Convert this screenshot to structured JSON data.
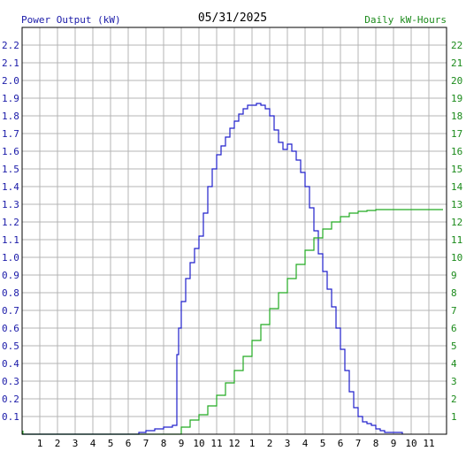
{
  "header": {
    "left_title": "Power Output (kW)",
    "center_title": "05/31/2025",
    "right_title": "Daily kW-Hours"
  },
  "colors": {
    "left_axis": "#1a1aa8",
    "right_axis": "#1a8a1a",
    "power_series": "#2020cc",
    "energy_series": "#22aa22",
    "grid": "#b4b4b4",
    "frame": "#000000"
  },
  "chart_data": {
    "type": "line",
    "x_ticks": [
      "1",
      "2",
      "3",
      "4",
      "5",
      "6",
      "7",
      "8",
      "9",
      "10",
      "11",
      "12",
      "1",
      "2",
      "3",
      "4",
      "5",
      "6",
      "7",
      "8",
      "9",
      "10",
      "11"
    ],
    "x_range_hours": [
      0,
      24
    ],
    "left_axis": {
      "label": "Power Output (kW)",
      "range": [
        0,
        2.3
      ],
      "ticks": [
        "0.1",
        "0.2",
        "0.3",
        "0.4",
        "0.5",
        "0.6",
        "0.7",
        "0.8",
        "0.9",
        "1.0",
        "1.1",
        "1.2",
        "1.3",
        "1.4",
        "1.5",
        "1.6",
        "1.7",
        "1.8",
        "1.9",
        "2.0",
        "2.1",
        "2.2"
      ]
    },
    "right_axis": {
      "label": "Daily kW-Hours",
      "range": [
        0,
        23
      ],
      "ticks": [
        "1",
        "2",
        "3",
        "4",
        "5",
        "6",
        "7",
        "8",
        "9",
        "10",
        "11",
        "12",
        "13",
        "14",
        "15",
        "16",
        "17",
        "18",
        "19",
        "20",
        "21",
        "22"
      ]
    },
    "grid": true,
    "series": [
      {
        "name": "Power Output (kW)",
        "axis": "left",
        "points": [
          [
            0,
            0
          ],
          [
            6.5,
            0
          ],
          [
            6.6,
            0.01
          ],
          [
            7,
            0.02
          ],
          [
            7.5,
            0.03
          ],
          [
            8,
            0.04
          ],
          [
            8.5,
            0.05
          ],
          [
            8.75,
            0.45
          ],
          [
            8.85,
            0.6
          ],
          [
            9,
            0.75
          ],
          [
            9.25,
            0.88
          ],
          [
            9.5,
            0.97
          ],
          [
            9.75,
            1.05
          ],
          [
            10,
            1.12
          ],
          [
            10.25,
            1.25
          ],
          [
            10.5,
            1.4
          ],
          [
            10.75,
            1.5
          ],
          [
            11,
            1.58
          ],
          [
            11.25,
            1.63
          ],
          [
            11.5,
            1.68
          ],
          [
            11.75,
            1.73
          ],
          [
            12,
            1.77
          ],
          [
            12.25,
            1.81
          ],
          [
            12.5,
            1.84
          ],
          [
            12.75,
            1.86
          ],
          [
            13,
            1.86
          ],
          [
            13.25,
            1.87
          ],
          [
            13.5,
            1.86
          ],
          [
            13.75,
            1.84
          ],
          [
            14,
            1.8
          ],
          [
            14.25,
            1.72
          ],
          [
            14.5,
            1.65
          ],
          [
            14.75,
            1.61
          ],
          [
            15,
            1.64
          ],
          [
            15.25,
            1.6
          ],
          [
            15.5,
            1.55
          ],
          [
            15.75,
            1.48
          ],
          [
            16,
            1.4
          ],
          [
            16.25,
            1.28
          ],
          [
            16.5,
            1.15
          ],
          [
            16.75,
            1.02
          ],
          [
            17,
            0.92
          ],
          [
            17.25,
            0.82
          ],
          [
            17.5,
            0.72
          ],
          [
            17.75,
            0.6
          ],
          [
            18,
            0.48
          ],
          [
            18.25,
            0.36
          ],
          [
            18.5,
            0.24
          ],
          [
            18.75,
            0.15
          ],
          [
            19,
            0.1
          ],
          [
            19.25,
            0.07
          ],
          [
            19.5,
            0.06
          ],
          [
            19.75,
            0.05
          ],
          [
            20,
            0.03
          ],
          [
            20.25,
            0.02
          ],
          [
            20.5,
            0.01
          ],
          [
            21,
            0.01
          ],
          [
            21.5,
            0
          ]
        ]
      },
      {
        "name": "Daily kW-Hours",
        "axis": "right",
        "points": [
          [
            0,
            0
          ],
          [
            8.5,
            0
          ],
          [
            9,
            0.4
          ],
          [
            9.5,
            0.8
          ],
          [
            10,
            1.1
          ],
          [
            10.5,
            1.6
          ],
          [
            11,
            2.2
          ],
          [
            11.5,
            2.9
          ],
          [
            12,
            3.6
          ],
          [
            12.5,
            4.4
          ],
          [
            13,
            5.3
          ],
          [
            13.5,
            6.2
          ],
          [
            14,
            7.1
          ],
          [
            14.5,
            8.0
          ],
          [
            15,
            8.8
          ],
          [
            15.5,
            9.6
          ],
          [
            16,
            10.4
          ],
          [
            16.5,
            11.1
          ],
          [
            17,
            11.6
          ],
          [
            17.5,
            12.0
          ],
          [
            18,
            12.3
          ],
          [
            18.5,
            12.5
          ],
          [
            19,
            12.6
          ],
          [
            19.5,
            12.65
          ],
          [
            20,
            12.7
          ],
          [
            21,
            12.7
          ],
          [
            22,
            12.7
          ],
          [
            23.8,
            12.7
          ]
        ]
      }
    ]
  }
}
